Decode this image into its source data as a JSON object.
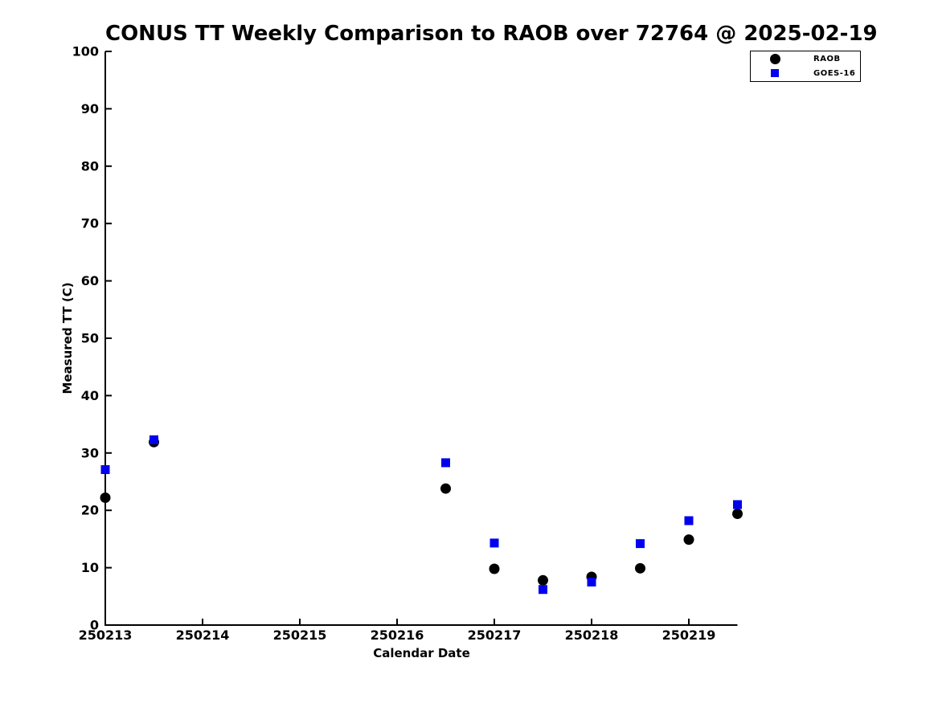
{
  "chart_data": {
    "type": "scatter",
    "title": "CONUS TT Weekly Comparison to RAOB over 72764 @ 2025-02-19",
    "xlabel": "Calendar Date",
    "ylabel": "Measured TT (C)",
    "xlim": [
      250213,
      250219.5
    ],
    "ylim": [
      0,
      100
    ],
    "xticks": [
      250213,
      250214,
      250215,
      250216,
      250217,
      250218,
      250219
    ],
    "yticks": [
      0,
      10,
      20,
      30,
      40,
      50,
      60,
      70,
      80,
      90,
      100
    ],
    "grid": false,
    "legend_position": "top-right-outside",
    "x": [
      250213,
      250213.5,
      250216.5,
      250217,
      250217.5,
      250218,
      250218.5,
      250219,
      250219.5
    ],
    "series": [
      {
        "name": "RAOB",
        "marker": "circle",
        "color": "#000000",
        "values": [
          22.2,
          31.9,
          23.8,
          9.8,
          7.8,
          8.4,
          9.9,
          14.9,
          19.4
        ]
      },
      {
        "name": "GOES-16",
        "marker": "square",
        "color": "#0000ee",
        "values": [
          27.1,
          32.3,
          28.3,
          14.3,
          6.2,
          7.5,
          14.2,
          18.2,
          21.0
        ]
      }
    ],
    "axis_color": "#000000",
    "background_color": "#ffffff"
  }
}
